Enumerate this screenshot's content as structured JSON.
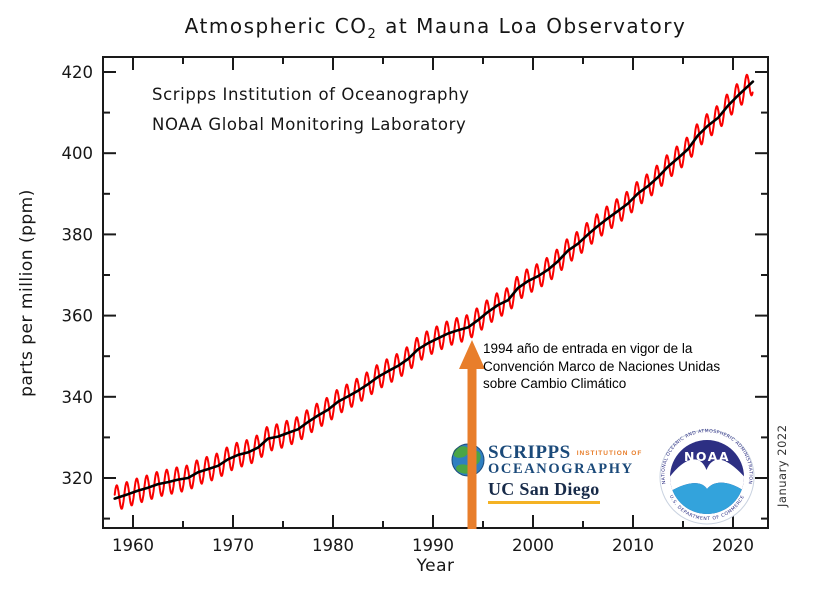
{
  "title": {
    "pre": "Atmospheric CO",
    "sub": "2",
    "post": " at Mauna Loa Observatory"
  },
  "credits": {
    "line1": "Scripps Institution of Oceanography",
    "line2": "NOAA Global Monitoring Laboratory"
  },
  "axes": {
    "y_label": "parts per million (ppm)",
    "x_label": "Year"
  },
  "date_note": "January 2022",
  "annotation": {
    "lines": [
      "1994 año de entrada en vigor de la",
      "Convención Marco de Naciones Unidas",
      "sobre Cambio Climático"
    ],
    "arrow_year": 1994,
    "arrow_color": "#e87e2b"
  },
  "logos": {
    "scripps": {
      "name": "SCRIPPS",
      "institution_of": "INSTITUTION OF",
      "oceanography": "OCEANOGRAPHY",
      "ucsd": "UC San Diego"
    },
    "noaa": {
      "center": "NOAA",
      "arc_top": "NATIONAL OCEANIC AND ATMOSPHERIC ADMINISTRATION",
      "arc_bottom": "U.S. DEPARTMENT OF COMMERCE"
    }
  },
  "chart_data": {
    "type": "line",
    "title": "Atmospheric CO2 at Mauna Loa Observatory",
    "xlabel": "Year",
    "ylabel": "parts per million (ppm)",
    "xlim": [
      1957.0,
      2023.5
    ],
    "ylim": [
      307.5,
      424.0
    ],
    "grid": false,
    "xticks_major": [
      1960,
      1970,
      1980,
      1990,
      2000,
      2010,
      2020
    ],
    "xticks_minor": [
      1965,
      1975,
      1985,
      1995,
      2005,
      2015
    ],
    "yticks_major": [
      320,
      340,
      360,
      380,
      400,
      420
    ],
    "yticks_minor": [
      310,
      330,
      350,
      370,
      390,
      410
    ],
    "frame_color": "#1a1a1a",
    "seasonal_amplitude_ppm": 3.1,
    "series": [
      {
        "name": "monthly CO2 with seasonal cycle",
        "color": "#fa0000",
        "width": 2.0
      },
      {
        "name": "smoothed trend",
        "color": "#000000",
        "width": 2.6
      }
    ],
    "annual_mean_co2": {
      "start_year": 1958,
      "end_year": 2021,
      "values": [
        315.2,
        316.0,
        316.9,
        317.6,
        318.5,
        319.0,
        319.6,
        320.0,
        321.4,
        322.2,
        323.0,
        324.6,
        325.7,
        326.3,
        327.5,
        329.7,
        330.2,
        331.1,
        332.0,
        333.8,
        335.4,
        336.8,
        338.8,
        340.1,
        341.5,
        343.1,
        344.9,
        346.3,
        347.6,
        349.3,
        351.7,
        353.2,
        354.4,
        355.6,
        356.4,
        357.1,
        358.9,
        360.9,
        362.6,
        363.8,
        366.8,
        368.5,
        369.7,
        371.3,
        373.4,
        376.0,
        377.7,
        380.0,
        382.1,
        384.0,
        385.8,
        387.6,
        390.1,
        391.9,
        394.1,
        396.7,
        398.8,
        401.0,
        404.4,
        406.8,
        408.7,
        411.7,
        414.2,
        416.5
      ]
    }
  }
}
